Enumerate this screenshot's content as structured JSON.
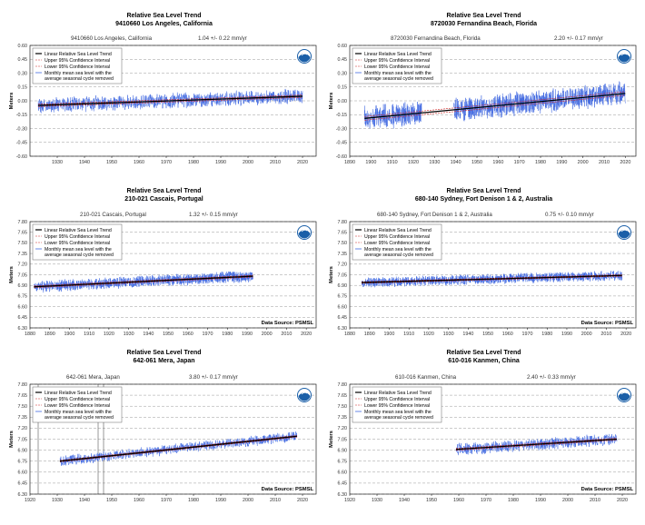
{
  "colors": {
    "monthly": "#4169e1",
    "trend": "#000000",
    "upper": "#cc2222",
    "lower": "#cc2222",
    "grid": "#999999",
    "noaa_blue": "#1a5fa8"
  },
  "legend": {
    "trend": "Linear Relative Sea Level Trend",
    "upper": "Upper 95% Confidence Interval",
    "lower": "Lower 95% Confidence Interval",
    "monthly_1": "Monthly mean sea level with the",
    "monthly_2": "average seasonal cycle removed"
  },
  "ylabel": "Meters",
  "chart_data": [
    {
      "type": "line",
      "title_1": "Relative Sea Level Trend",
      "title_2": "9410660 Los Angeles, California",
      "station": "9410660 Los Angeles, California",
      "rate": "1.04 +/-  0.22 mm/yr",
      "xlim": [
        1920,
        2025
      ],
      "xticks": [
        1930,
        1940,
        1950,
        1960,
        1970,
        1980,
        1990,
        2000,
        2010,
        2020
      ],
      "ylim": [
        -0.6,
        0.6
      ],
      "yticks": [
        "0.60",
        "0.45",
        "0.30",
        "0.15",
        "0.00",
        "-0.15",
        "-0.30",
        "-0.45",
        "-0.60"
      ],
      "data_start": 1923,
      "data_end": 2020,
      "trend_start": -0.05,
      "trend_end": 0.05,
      "noise": 0.07,
      "source": ""
    },
    {
      "type": "line",
      "title_1": "Relative Sea Level Trend",
      "title_2": "8720030 Fernandina Beach, Florida",
      "station": "8720030 Fernandina Beach, Florida",
      "rate": "2.20 +/-  0.17 mm/yr",
      "xlim": [
        1890,
        2025
      ],
      "xticks": [
        1890,
        1900,
        1910,
        1920,
        1930,
        1940,
        1950,
        1960,
        1970,
        1980,
        1990,
        2000,
        2010,
        2020
      ],
      "ylim": [
        -0.6,
        0.6
      ],
      "yticks": [
        "0.60",
        "0.45",
        "0.30",
        "0.15",
        "0.00",
        "-0.15",
        "-0.30",
        "-0.45",
        "-0.60"
      ],
      "data_start": 1897,
      "data_end": 2020,
      "gaps": [
        [
          1924,
          1939
        ]
      ],
      "trend_start": -0.19,
      "trend_end": 0.08,
      "noise": 0.11,
      "source": ""
    },
    {
      "type": "line",
      "title_1": "Relative Sea Level Trend",
      "title_2": "210-021 Cascais, Portugal",
      "station": "210-021 Cascais, Portugal",
      "rate": "1.32 +/-  0.15 mm/yr",
      "xlim": [
        1880,
        2025
      ],
      "xticks": [
        1880,
        1890,
        1900,
        1910,
        1920,
        1930,
        1940,
        1950,
        1960,
        1970,
        1980,
        1990,
        2000,
        2010,
        2020
      ],
      "ylim": [
        6.3,
        7.8
      ],
      "yticks": [
        "7.80",
        "7.65",
        "7.50",
        "7.35",
        "7.20",
        "7.05",
        "6.90",
        "6.75",
        "6.60",
        "6.45",
        "6.30"
      ],
      "data_start": 1882,
      "data_end": 1993,
      "trend_start": 6.88,
      "trend_end": 7.03,
      "noise": 0.07,
      "source": "Data Source: PSMSL"
    },
    {
      "type": "line",
      "title_1": "Relative Sea Level Trend",
      "title_2": "680-140 Sydney, Fort Denison 1 & 2, Australia",
      "station": "680-140 Sydney, Fort Denison 1 & 2, Australia",
      "rate": "0.75 +/-  0.10 mm/yr",
      "xlim": [
        1880,
        2025
      ],
      "xticks": [
        1880,
        1890,
        1900,
        1910,
        1920,
        1930,
        1940,
        1950,
        1960,
        1970,
        1980,
        1990,
        2000,
        2010,
        2020
      ],
      "ylim": [
        6.3,
        7.8
      ],
      "yticks": [
        "7.80",
        "7.65",
        "7.50",
        "7.35",
        "7.20",
        "7.05",
        "6.90",
        "6.75",
        "6.60",
        "6.45",
        "6.30"
      ],
      "data_start": 1886,
      "data_end": 2018,
      "trend_start": 6.94,
      "trend_end": 7.04,
      "noise": 0.06,
      "source": "Data Source: PSMSL"
    },
    {
      "type": "line",
      "title_1": "Relative Sea Level Trend",
      "title_2": "642-061 Mera, Japan",
      "station": "642-061 Mera, Japan",
      "rate": "3.80 +/-  0.17 mm/yr",
      "xlim": [
        1920,
        2025
      ],
      "xticks": [
        1920,
        1930,
        1940,
        1950,
        1960,
        1970,
        1980,
        1990,
        2000,
        2010,
        2020
      ],
      "ylim": [
        6.3,
        7.8
      ],
      "yticks": [
        "7.80",
        "7.65",
        "7.50",
        "7.35",
        "7.20",
        "7.05",
        "6.90",
        "6.75",
        "6.60",
        "6.45",
        "6.30"
      ],
      "data_start": 1931,
      "data_end": 2018,
      "trend_start": 6.75,
      "trend_end": 7.09,
      "noise": 0.06,
      "vlines": [
        1923,
        1945,
        1947
      ],
      "source": "Data Source: PSMSL"
    },
    {
      "type": "line",
      "title_1": "Relative Sea Level Trend",
      "title_2": "610-016 Kanmen, China",
      "station": "610-016 Kanmen, China",
      "rate": "2.40 +/-  0.33 mm/yr",
      "xlim": [
        1920,
        2025
      ],
      "xticks": [
        1920,
        1930,
        1940,
        1950,
        1960,
        1970,
        1980,
        1990,
        2000,
        2010,
        2020
      ],
      "ylim": [
        6.3,
        7.8
      ],
      "yticks": [
        "7.80",
        "7.65",
        "7.50",
        "7.35",
        "7.20",
        "7.05",
        "6.90",
        "6.75",
        "6.60",
        "6.45",
        "6.30"
      ],
      "data_start": 1959,
      "data_end": 2018,
      "trend_start": 6.91,
      "trend_end": 7.05,
      "noise": 0.07,
      "source": "Data Source: PSMSL"
    }
  ]
}
